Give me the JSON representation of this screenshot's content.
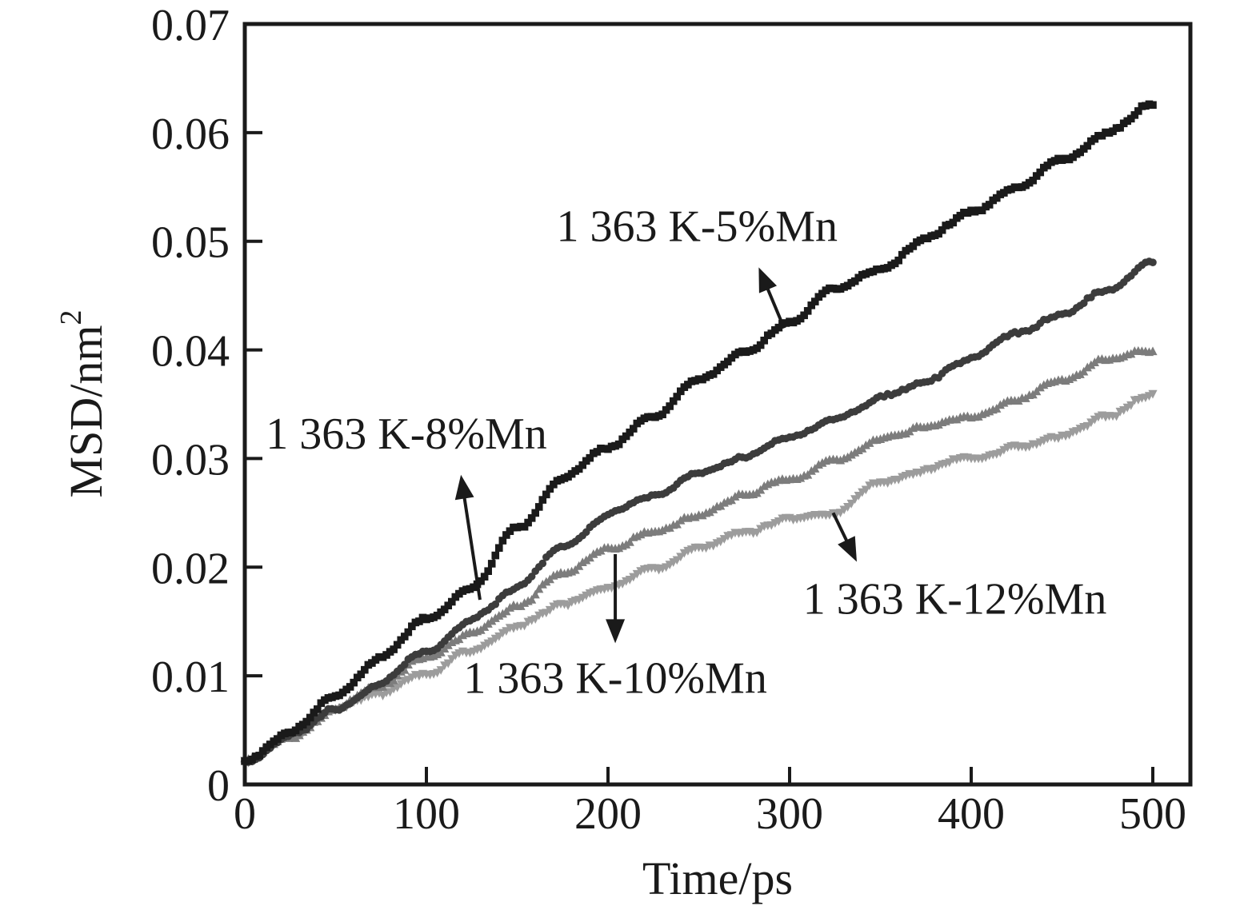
{
  "figure": {
    "background": "#ffffff",
    "axis_color": "#1a1a1a"
  },
  "chart_data": {
    "type": "line",
    "title": "",
    "xlabel": "Time/ps",
    "ylabel": "MSD/nm²",
    "ylabel_main": "MSD/nm",
    "ylabel_superscript": "2",
    "xlim": [
      0,
      520
    ],
    "ylim": [
      0,
      0.07
    ],
    "grid": false,
    "legend_position": "none (curves labeled by in-plot annotations with arrows)",
    "x_ticks": [
      0,
      100,
      200,
      300,
      400,
      500
    ],
    "x_tick_labels": [
      "0",
      "100",
      "200",
      "300",
      "400",
      "500"
    ],
    "y_ticks": [
      0,
      0.01,
      0.02,
      0.03,
      0.04,
      0.05,
      0.06,
      0.07
    ],
    "y_tick_labels": [
      "0",
      "0.01",
      "0.02",
      "0.03",
      "0.04",
      "0.05",
      "0.06",
      "0.07"
    ],
    "x": [
      0,
      25,
      50,
      75,
      100,
      125,
      150,
      175,
      200,
      225,
      250,
      275,
      300,
      325,
      350,
      375,
      400,
      425,
      450,
      475,
      500
    ],
    "series": [
      {
        "name": "1 363 K-12%Mn",
        "marker": "triangle-down",
        "color": "#9c9c9c",
        "values": [
          0.0022,
          0.0044,
          0.0066,
          0.0082,
          0.0105,
          0.0125,
          0.0146,
          0.0162,
          0.0177,
          0.0196,
          0.0216,
          0.0231,
          0.0246,
          0.0252,
          0.0278,
          0.0292,
          0.0298,
          0.0308,
          0.032,
          0.034,
          0.0357
        ]
      },
      {
        "name": "1 363 K-10%Mn",
        "marker": "triangle-up",
        "color": "#7c7c7c",
        "values": [
          0.0022,
          0.0046,
          0.007,
          0.009,
          0.0115,
          0.014,
          0.0163,
          0.019,
          0.0213,
          0.0232,
          0.025,
          0.0267,
          0.0283,
          0.0302,
          0.032,
          0.0328,
          0.0334,
          0.0352,
          0.0368,
          0.0388,
          0.0398
        ]
      },
      {
        "name": "1 363 K-8%Mn",
        "marker": "circle",
        "color": "#3c3c3c",
        "values": [
          0.0022,
          0.0048,
          0.0072,
          0.0092,
          0.0122,
          0.0155,
          0.018,
          0.0215,
          0.0247,
          0.0265,
          0.0284,
          0.0303,
          0.032,
          0.034,
          0.0357,
          0.0372,
          0.0391,
          0.0412,
          0.043,
          0.0452,
          0.0478
        ]
      },
      {
        "name": "1 363 K-5%Mn",
        "marker": "square",
        "color": "#1a1a1a",
        "values": [
          0.0022,
          0.0052,
          0.0085,
          0.012,
          0.0155,
          0.0185,
          0.0238,
          0.0285,
          0.031,
          0.034,
          0.0373,
          0.0398,
          0.0425,
          0.046,
          0.0478,
          0.0505,
          0.0528,
          0.0553,
          0.0578,
          0.0603,
          0.063
        ]
      }
    ],
    "annotations": [
      {
        "text": "1 363 K-5%Mn",
        "points_to_series": "1 363 K-5%Mn",
        "text_at": {
          "t": 249,
          "v": 0.0515
        },
        "arrow": {
          "from": {
            "t": 297,
            "v": 0.042
          },
          "to": {
            "t": 283,
            "v": 0.0476
          }
        }
      },
      {
        "text": "1 363 K-8%Mn",
        "points_to_series": "1 363 K-8%Mn",
        "text_at": {
          "t": 89,
          "v": 0.0324
        },
        "arrow": {
          "from": {
            "t": 129.5,
            "v": 0.017
          },
          "to": {
            "t": 119,
            "v": 0.0285
          }
        }
      },
      {
        "text": "1 363 K-10%Mn",
        "points_to_series": "1 363 K-10%Mn",
        "text_at": {
          "t": 204,
          "v": 0.0099
        },
        "arrow": {
          "from": {
            "t": 204,
            "v": 0.0212
          },
          "to": {
            "t": 204,
            "v": 0.013
          }
        }
      },
      {
        "text": "1 363 K-12%Mn",
        "points_to_series": "1 363 K-12%Mn",
        "text_at": {
          "t": 391,
          "v": 0.0172
        },
        "arrow": {
          "from": {
            "t": 324,
            "v": 0.025
          },
          "to": {
            "t": 337,
            "v": 0.0205
          }
        }
      }
    ]
  }
}
